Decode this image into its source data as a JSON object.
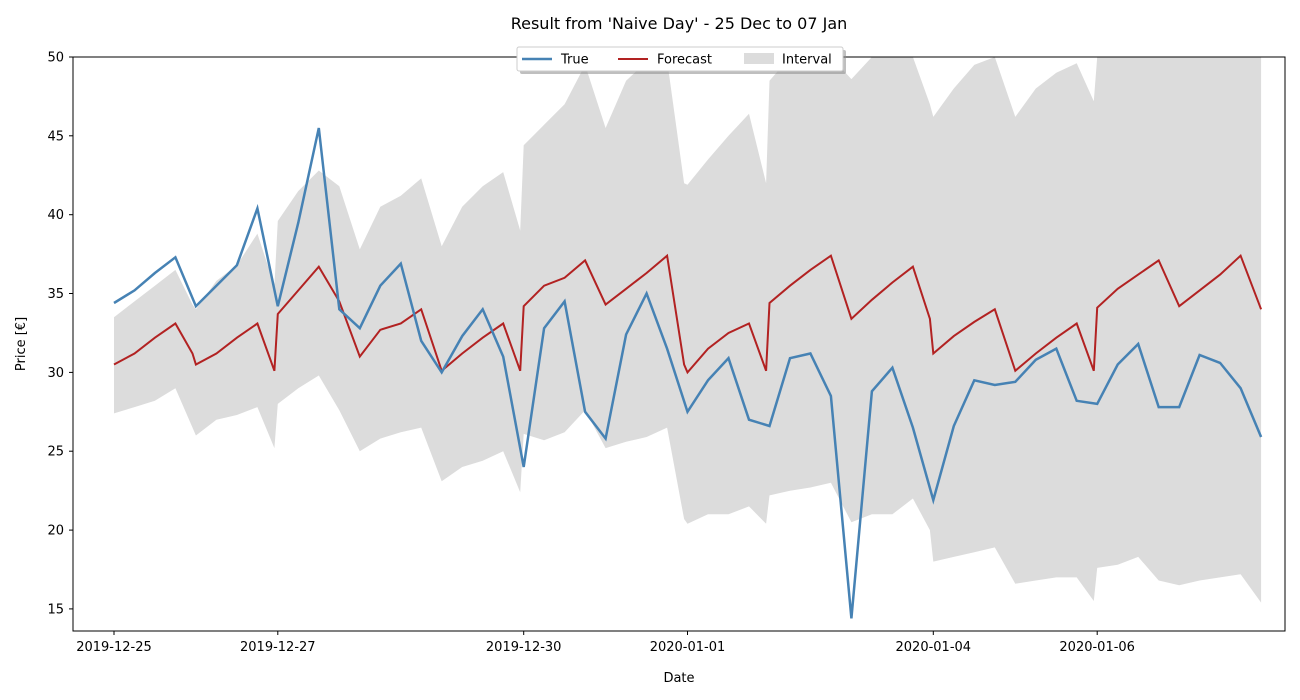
{
  "chart_data": {
    "type": "line",
    "title": "Result from 'Naive Day' - 25 Dec to 07 Jan",
    "xlabel": "Date",
    "ylabel": "Price [€]",
    "ylim": [
      13.6,
      50
    ],
    "xlim": [
      "2019-12-24 12:00",
      "2020-01-08 07:00"
    ],
    "yticks": [
      15,
      20,
      25,
      30,
      35,
      40,
      45,
      50
    ],
    "xticks": [
      "2019-12-25",
      "2019-12-27",
      "2019-12-30",
      "2020-01-01",
      "2020-01-04",
      "2020-01-06"
    ],
    "legend_placement": "top-center",
    "grid": false,
    "series": [
      {
        "name": "True",
        "color": "#4682b4",
        "points": [
          [
            "2019-12-25 00:00",
            34.4
          ],
          [
            "2019-12-25 06:00",
            35.2
          ],
          [
            "2019-12-25 12:00",
            36.3
          ],
          [
            "2019-12-25 18:00",
            37.3
          ],
          [
            "2019-12-26 00:00",
            34.2
          ],
          [
            "2019-12-26 06:00",
            35.5
          ],
          [
            "2019-12-26 12:00",
            36.8
          ],
          [
            "2019-12-26 18:00",
            40.4
          ],
          [
            "2019-12-27 00:00",
            34.2
          ],
          [
            "2019-12-27 06:00",
            39.5
          ],
          [
            "2019-12-27 12:00",
            45.5
          ],
          [
            "2019-12-27 18:00",
            34.0
          ],
          [
            "2019-12-28 00:00",
            32.8
          ],
          [
            "2019-12-28 06:00",
            35.5
          ],
          [
            "2019-12-28 12:00",
            36.9
          ],
          [
            "2019-12-28 18:00",
            32.0
          ],
          [
            "2019-12-29 00:00",
            30.0
          ],
          [
            "2019-12-29 06:00",
            32.3
          ],
          [
            "2019-12-29 12:00",
            34.0
          ],
          [
            "2019-12-29 18:00",
            31.0
          ],
          [
            "2019-12-30 00:00",
            24.0
          ],
          [
            "2019-12-30 06:00",
            32.8
          ],
          [
            "2019-12-30 12:00",
            34.5
          ],
          [
            "2019-12-30 18:00",
            27.5
          ],
          [
            "2019-12-31 00:00",
            25.8
          ],
          [
            "2019-12-31 06:00",
            32.4
          ],
          [
            "2019-12-31 12:00",
            35.0
          ],
          [
            "2019-12-31 18:00",
            31.5
          ],
          [
            "2020-01-01 00:00",
            27.5
          ],
          [
            "2020-01-01 06:00",
            29.5
          ],
          [
            "2020-01-01 12:00",
            30.9
          ],
          [
            "2020-01-01 18:00",
            27.0
          ],
          [
            "2020-01-02 00:00",
            26.6
          ],
          [
            "2020-01-02 06:00",
            30.9
          ],
          [
            "2020-01-02 12:00",
            31.2
          ],
          [
            "2020-01-02 18:00",
            28.5
          ],
          [
            "2020-01-03 00:00",
            14.4
          ],
          [
            "2020-01-03 06:00",
            28.8
          ],
          [
            "2020-01-03 12:00",
            30.3
          ],
          [
            "2020-01-03 18:00",
            26.5
          ],
          [
            "2020-01-04 00:00",
            21.9
          ],
          [
            "2020-01-04 06:00",
            26.6
          ],
          [
            "2020-01-04 12:00",
            29.5
          ],
          [
            "2020-01-04 18:00",
            29.2
          ],
          [
            "2020-01-05 00:00",
            29.4
          ],
          [
            "2020-01-05 06:00",
            30.8
          ],
          [
            "2020-01-05 12:00",
            31.5
          ],
          [
            "2020-01-05 18:00",
            28.2
          ],
          [
            "2020-01-06 00:00",
            28.0
          ],
          [
            "2020-01-06 06:00",
            30.5
          ],
          [
            "2020-01-06 12:00",
            31.8
          ],
          [
            "2020-01-06 18:00",
            27.8
          ],
          [
            "2020-01-07 00:00",
            27.8
          ],
          [
            "2020-01-07 06:00",
            31.1
          ],
          [
            "2020-01-07 12:00",
            30.6
          ],
          [
            "2020-01-07 18:00",
            29.0
          ],
          [
            "2020-01-08 00:00",
            25.9
          ]
        ]
      },
      {
        "name": "Forecast",
        "color": "#b22222",
        "points": [
          [
            "2019-12-25 00:00",
            30.5
          ],
          [
            "2019-12-25 06:00",
            31.2
          ],
          [
            "2019-12-25 12:00",
            32.2
          ],
          [
            "2019-12-25 18:00",
            33.1
          ],
          [
            "2019-12-25 23:00",
            31.2
          ],
          [
            "2019-12-26 00:00",
            30.5
          ],
          [
            "2019-12-26 06:00",
            31.2
          ],
          [
            "2019-12-26 12:00",
            32.2
          ],
          [
            "2019-12-26 18:00",
            33.1
          ],
          [
            "2019-12-26 23:00",
            30.1
          ],
          [
            "2019-12-27 00:00",
            33.7
          ],
          [
            "2019-12-27 06:00",
            35.2
          ],
          [
            "2019-12-27 12:00",
            36.7
          ],
          [
            "2019-12-27 18:00",
            34.5
          ],
          [
            "2019-12-28 00:00",
            31.0
          ],
          [
            "2019-12-28 06:00",
            32.7
          ],
          [
            "2019-12-28 12:00",
            33.1
          ],
          [
            "2019-12-28 18:00",
            34.0
          ],
          [
            "2019-12-29 00:00",
            30.1
          ],
          [
            "2019-12-29 06:00",
            31.2
          ],
          [
            "2019-12-29 12:00",
            32.2
          ],
          [
            "2019-12-29 18:00",
            33.1
          ],
          [
            "2019-12-29 23:00",
            30.1
          ],
          [
            "2019-12-30 00:00",
            34.2
          ],
          [
            "2019-12-30 06:00",
            35.5
          ],
          [
            "2019-12-30 12:00",
            36.0
          ],
          [
            "2019-12-30 18:00",
            37.1
          ],
          [
            "2019-12-31 00:00",
            34.3
          ],
          [
            "2019-12-31 06:00",
            35.3
          ],
          [
            "2019-12-31 12:00",
            36.3
          ],
          [
            "2019-12-31 18:00",
            37.4
          ],
          [
            "2019-12-31 23:00",
            30.5
          ],
          [
            "2020-01-01 00:00",
            30.0
          ],
          [
            "2020-01-01 06:00",
            31.5
          ],
          [
            "2020-01-01 12:00",
            32.5
          ],
          [
            "2020-01-01 18:00",
            33.1
          ],
          [
            "2020-01-01 23:00",
            30.1
          ],
          [
            "2020-01-02 00:00",
            34.4
          ],
          [
            "2020-01-02 06:00",
            35.5
          ],
          [
            "2020-01-02 12:00",
            36.5
          ],
          [
            "2020-01-02 18:00",
            37.4
          ],
          [
            "2020-01-03 00:00",
            33.4
          ],
          [
            "2020-01-03 06:00",
            34.6
          ],
          [
            "2020-01-03 12:00",
            35.7
          ],
          [
            "2020-01-03 18:00",
            36.7
          ],
          [
            "2020-01-03 23:00",
            33.4
          ],
          [
            "2020-01-04 00:00",
            31.2
          ],
          [
            "2020-01-04 06:00",
            32.3
          ],
          [
            "2020-01-04 12:00",
            33.2
          ],
          [
            "2020-01-04 18:00",
            34.0
          ],
          [
            "2020-01-05 00:00",
            30.1
          ],
          [
            "2020-01-05 06:00",
            31.2
          ],
          [
            "2020-01-05 12:00",
            32.2
          ],
          [
            "2020-01-05 18:00",
            33.1
          ],
          [
            "2020-01-05 23:00",
            30.1
          ],
          [
            "2020-01-06 00:00",
            34.1
          ],
          [
            "2020-01-06 06:00",
            35.3
          ],
          [
            "2020-01-06 12:00",
            36.2
          ],
          [
            "2020-01-06 18:00",
            37.1
          ],
          [
            "2020-01-07 00:00",
            34.2
          ],
          [
            "2020-01-07 06:00",
            35.2
          ],
          [
            "2020-01-07 12:00",
            36.2
          ],
          [
            "2020-01-07 18:00",
            37.4
          ],
          [
            "2020-01-08 00:00",
            34.0
          ]
        ]
      },
      {
        "name": "Interval",
        "color": "#dcdcdc",
        "type": "band",
        "points": [
          [
            "2019-12-25 00:00",
            27.4,
            33.5
          ],
          [
            "2019-12-25 06:00",
            27.8,
            34.5
          ],
          [
            "2019-12-25 12:00",
            28.2,
            35.5
          ],
          [
            "2019-12-25 18:00",
            29.0,
            36.5
          ],
          [
            "2019-12-25 23:00",
            26.5,
            34.3
          ],
          [
            "2019-12-26 00:00",
            26.0,
            34.0
          ],
          [
            "2019-12-26 06:00",
            27.0,
            35.8
          ],
          [
            "2019-12-26 12:00",
            27.3,
            36.8
          ],
          [
            "2019-12-26 18:00",
            27.8,
            38.8
          ],
          [
            "2019-12-26 23:00",
            25.2,
            35.5
          ],
          [
            "2019-12-27 00:00",
            28.0,
            39.6
          ],
          [
            "2019-12-27 06:00",
            29.0,
            41.5
          ],
          [
            "2019-12-27 12:00",
            29.8,
            42.8
          ],
          [
            "2019-12-27 18:00",
            27.6,
            41.8
          ],
          [
            "2019-12-28 00:00",
            25.0,
            37.8
          ],
          [
            "2019-12-28 06:00",
            25.8,
            40.5
          ],
          [
            "2019-12-28 12:00",
            26.2,
            41.2
          ],
          [
            "2019-12-28 18:00",
            26.5,
            42.3
          ],
          [
            "2019-12-29 00:00",
            23.1,
            38.0
          ],
          [
            "2019-12-29 06:00",
            24.0,
            40.5
          ],
          [
            "2019-12-29 12:00",
            24.4,
            41.8
          ],
          [
            "2019-12-29 18:00",
            25.0,
            42.7
          ],
          [
            "2019-12-29 23:00",
            22.4,
            39.0
          ],
          [
            "2019-12-30 00:00",
            26.1,
            44.4
          ],
          [
            "2019-12-30 06:00",
            25.7,
            45.7
          ],
          [
            "2019-12-30 12:00",
            26.2,
            47.0
          ],
          [
            "2019-12-30 18:00",
            27.6,
            49.5
          ],
          [
            "2019-12-31 00:00",
            25.2,
            45.5
          ],
          [
            "2019-12-31 06:00",
            25.6,
            48.5
          ],
          [
            "2019-12-31 12:00",
            25.9,
            49.7
          ],
          [
            "2019-12-31 18:00",
            26.5,
            49.8
          ],
          [
            "2019-12-31 23:00",
            20.7,
            42.0
          ],
          [
            "2020-01-01 00:00",
            20.4,
            41.9
          ],
          [
            "2020-01-01 06:00",
            21.0,
            43.5
          ],
          [
            "2020-01-01 12:00",
            21.0,
            45.0
          ],
          [
            "2020-01-01 18:00",
            21.5,
            46.4
          ],
          [
            "2020-01-01 23:00",
            20.4,
            42.0
          ],
          [
            "2020-01-02 00:00",
            22.2,
            48.5
          ],
          [
            "2020-01-02 06:00",
            22.5,
            50.0
          ],
          [
            "2020-01-02 12:00",
            22.7,
            50.0
          ],
          [
            "2020-01-02 18:00",
            23.0,
            50.0
          ],
          [
            "2020-01-03 00:00",
            20.5,
            48.6
          ],
          [
            "2020-01-03 06:00",
            21.0,
            50.0
          ],
          [
            "2020-01-03 12:00",
            21.0,
            50.0
          ],
          [
            "2020-01-03 18:00",
            22.0,
            50.0
          ],
          [
            "2020-01-03 23:00",
            20.0,
            47.0
          ],
          [
            "2020-01-04 00:00",
            18.0,
            46.2
          ],
          [
            "2020-01-04 06:00",
            18.3,
            48.0
          ],
          [
            "2020-01-04 12:00",
            18.6,
            49.5
          ],
          [
            "2020-01-04 18:00",
            18.9,
            50.0
          ],
          [
            "2020-01-05 00:00",
            16.6,
            46.2
          ],
          [
            "2020-01-05 06:00",
            16.8,
            48.0
          ],
          [
            "2020-01-05 12:00",
            17.0,
            49.0
          ],
          [
            "2020-01-05 18:00",
            17.0,
            49.6
          ],
          [
            "2020-01-05 23:00",
            15.5,
            47.2
          ],
          [
            "2020-01-06 00:00",
            17.6,
            50.0
          ],
          [
            "2020-01-06 06:00",
            17.8,
            50.0
          ],
          [
            "2020-01-06 12:00",
            18.3,
            50.0
          ],
          [
            "2020-01-06 18:00",
            16.8,
            50.0
          ],
          [
            "2020-01-07 00:00",
            16.5,
            50.0
          ],
          [
            "2020-01-07 06:00",
            16.8,
            50.0
          ],
          [
            "2020-01-07 12:00",
            17.0,
            50.0
          ],
          [
            "2020-01-07 18:00",
            17.2,
            50.0
          ],
          [
            "2020-01-08 00:00",
            15.4,
            50.0
          ]
        ]
      }
    ]
  }
}
